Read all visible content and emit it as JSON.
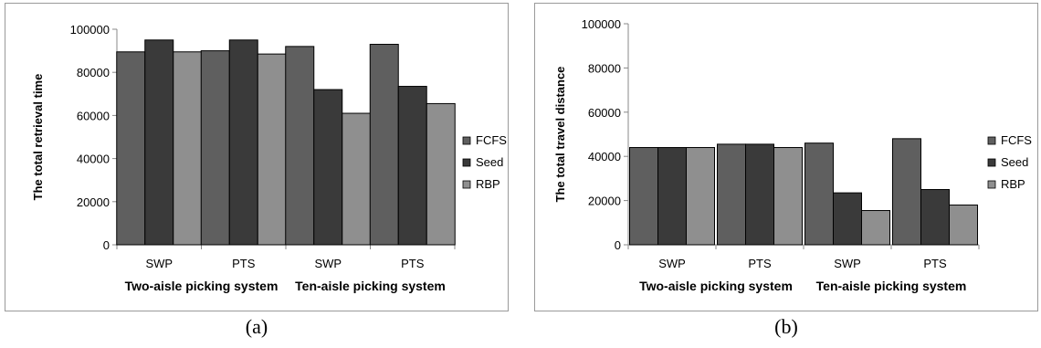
{
  "captions": [
    "(a)",
    "(b)"
  ],
  "chart_data": [
    {
      "type": "bar",
      "title": "",
      "ylabel": "The total retrieval time",
      "ylim": [
        0,
        100000
      ],
      "yticks": [
        0,
        20000,
        40000,
        60000,
        80000,
        100000
      ],
      "categories": [
        "SWP",
        "PTS",
        "SWP",
        "PTS"
      ],
      "groups": [
        {
          "label": "Two-aisle picking system",
          "categories": [
            "SWP",
            "PTS"
          ]
        },
        {
          "label": "Ten-aisle picking system",
          "categories": [
            "SWP",
            "PTS"
          ]
        }
      ],
      "series": [
        {
          "name": "FCFS",
          "color": "#5f5f5f",
          "values": [
            89500,
            90000,
            92000,
            93000
          ]
        },
        {
          "name": "Seed",
          "color": "#3a3a3a",
          "values": [
            95000,
            95000,
            72000,
            73500
          ]
        },
        {
          "name": "RBP",
          "color": "#8f8f8f",
          "values": [
            89500,
            88500,
            61000,
            65500
          ]
        }
      ],
      "legend": "right",
      "grid": false
    },
    {
      "type": "bar",
      "title": "",
      "ylabel": "The total travel distance",
      "ylim": [
        0,
        100000
      ],
      "yticks": [
        0,
        20000,
        40000,
        60000,
        80000,
        100000
      ],
      "categories": [
        "SWP",
        "PTS",
        "SWP",
        "PTS"
      ],
      "groups": [
        {
          "label": "Two-aisle picking system",
          "categories": [
            "SWP",
            "PTS"
          ]
        },
        {
          "label": "Ten-aisle picking system",
          "categories": [
            "SWP",
            "PTS"
          ]
        }
      ],
      "series": [
        {
          "name": "FCFS",
          "color": "#5f5f5f",
          "values": [
            44000,
            45500,
            46000,
            48000
          ]
        },
        {
          "name": "Seed",
          "color": "#3a3a3a",
          "values": [
            44000,
            45500,
            23500,
            25000
          ]
        },
        {
          "name": "RBP",
          "color": "#8f8f8f",
          "values": [
            44000,
            44000,
            15500,
            18000
          ]
        }
      ],
      "legend": "right",
      "grid": false
    }
  ]
}
